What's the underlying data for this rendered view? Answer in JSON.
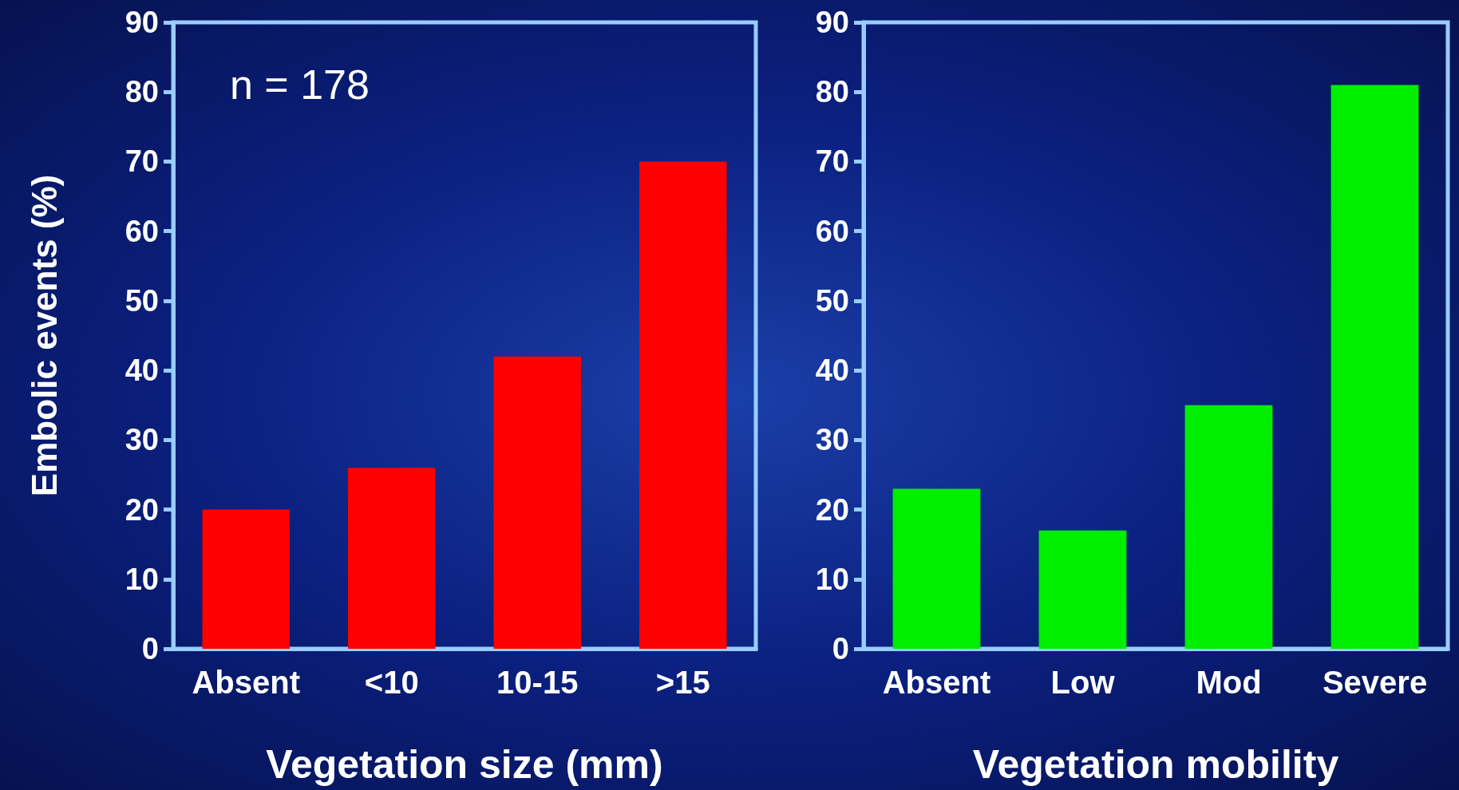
{
  "chart_data": [
    {
      "type": "bar",
      "categories": [
        "Absent",
        "<10",
        "10-15",
        ">15"
      ],
      "values": [
        20,
        26,
        42,
        70
      ],
      "color": "#ff0000",
      "xlabel": "Vegetation size (mm)",
      "ylabel": "Embolic events (%)",
      "ylim": [
        0,
        90
      ],
      "yticks": [
        0,
        10,
        20,
        30,
        40,
        50,
        60,
        70,
        80,
        90
      ],
      "grid": false,
      "annotations": [
        "n = 178"
      ]
    },
    {
      "type": "bar",
      "categories": [
        "Absent",
        "Low",
        "Mod",
        "Severe"
      ],
      "values": [
        23,
        17,
        35,
        81
      ],
      "color": "#00ee00",
      "xlabel": "Vegetation mobility",
      "ylim": [
        0,
        90
      ],
      "yticks": [
        0,
        10,
        20,
        30,
        40,
        50,
        60,
        70,
        80,
        90
      ],
      "grid": false
    }
  ]
}
